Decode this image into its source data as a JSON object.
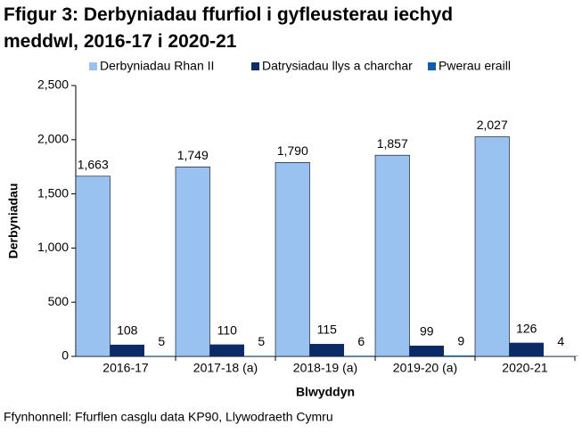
{
  "chart_data": {
    "type": "bar",
    "title": "Ffigur 3: Derbyniadau ffurfiol i gyfleusterau iechyd meddwl, 2016-17 i 2020-21",
    "categories": [
      "2016-17",
      "2017-18 (a)",
      "2018-19 (a)",
      "2019-20 (a)",
      "2020-21"
    ],
    "series": [
      {
        "name": "Derbyniadau Rhan II",
        "color": "#99c2f0",
        "values": [
          1663,
          1749,
          1790,
          1857,
          2027
        ],
        "value_labels": [
          "1,663",
          "1,749",
          "1,790",
          "1,857",
          "2,027"
        ]
      },
      {
        "name": "Datrysiadau llys a charchar",
        "color": "#0b2a66",
        "values": [
          108,
          110,
          115,
          99,
          126
        ]
      },
      {
        "name": "Pwerau eraill",
        "color": "#0e5ea8",
        "values": [
          5,
          5,
          6,
          9,
          4
        ]
      }
    ],
    "ylim": [
      0,
      2500
    ],
    "yticks": [
      0,
      500,
      {
        "value": 1000,
        "label": "1,000"
      },
      {
        "value": 1500,
        "label": "1,500"
      },
      {
        "value": 2000,
        "label": "2,000"
      },
      {
        "value": 2500,
        "label": "2,500"
      }
    ],
    "ylabel": "Derbyniadau",
    "xlabel": "Blwyddyn",
    "source": "Ffynhonnell: Ffurflen casglu data KP90, Llywodraeth Cymru",
    "legend": "top"
  }
}
